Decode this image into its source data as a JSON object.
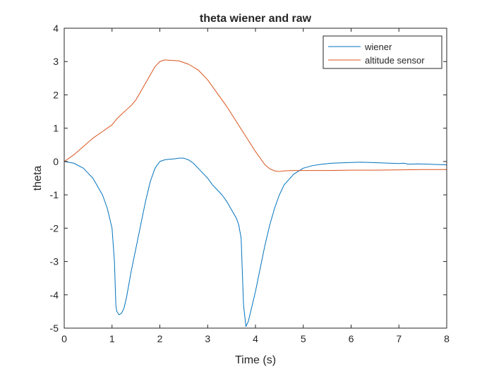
{
  "chart_data": {
    "type": "line",
    "title": "theta wiener and raw",
    "xlabel": "Time (s)",
    "ylabel": "theta",
    "xlim": [
      0,
      8
    ],
    "ylim": [
      -5,
      4
    ],
    "xticks": [
      0,
      1,
      2,
      3,
      4,
      5,
      6,
      7,
      8
    ],
    "yticks": [
      -5,
      -4,
      -3,
      -2,
      -1,
      0,
      1,
      2,
      3,
      4
    ],
    "grid": false,
    "legend_position": "top-right",
    "series": [
      {
        "name": "wiener",
        "color": "#0072BD",
        "x": [
          0,
          0.2,
          0.4,
          0.6,
          0.8,
          0.9,
          0.95,
          1.0,
          1.05,
          1.08,
          1.1,
          1.15,
          1.2,
          1.25,
          1.3,
          1.35,
          1.4,
          1.5,
          1.6,
          1.7,
          1.8,
          1.9,
          2.0,
          2.1,
          2.2,
          2.3,
          2.4,
          2.5,
          2.6,
          2.7,
          2.8,
          2.9,
          3.0,
          3.1,
          3.2,
          3.3,
          3.4,
          3.5,
          3.6,
          3.65,
          3.7,
          3.75,
          3.8,
          3.85,
          3.9,
          4.0,
          4.1,
          4.2,
          4.3,
          4.4,
          4.5,
          4.6,
          4.8,
          5.0,
          5.2,
          5.4,
          5.6,
          5.8,
          6.0,
          6.2,
          6.4,
          6.6,
          6.8,
          7.0,
          7.1,
          7.2,
          7.4,
          7.6,
          7.8,
          8.0
        ],
        "y": [
          0,
          -0.05,
          -0.2,
          -0.5,
          -1.0,
          -1.4,
          -1.7,
          -2.0,
          -3.0,
          -4.3,
          -4.5,
          -4.6,
          -4.55,
          -4.4,
          -4.1,
          -3.7,
          -3.3,
          -2.6,
          -1.9,
          -1.2,
          -0.6,
          -0.2,
          0,
          0.05,
          0.07,
          0.08,
          0.1,
          0.1,
          0.05,
          -0.05,
          -0.2,
          -0.35,
          -0.5,
          -0.7,
          -0.85,
          -1.0,
          -1.2,
          -1.45,
          -1.7,
          -1.9,
          -2.3,
          -4.3,
          -4.95,
          -4.8,
          -4.5,
          -3.9,
          -3.2,
          -2.5,
          -1.9,
          -1.4,
          -1.0,
          -0.7,
          -0.38,
          -0.2,
          -0.12,
          -0.08,
          -0.05,
          -0.04,
          -0.03,
          -0.02,
          -0.03,
          -0.04,
          -0.05,
          -0.06,
          -0.05,
          -0.08,
          -0.07,
          -0.08,
          -0.09,
          -0.1
        ]
      },
      {
        "name": "altitude sensor",
        "color": "#D95319",
        "x": [
          0,
          0.2,
          0.4,
          0.6,
          0.8,
          1.0,
          1.1,
          1.2,
          1.3,
          1.4,
          1.5,
          1.6,
          1.7,
          1.8,
          1.9,
          2.0,
          2.1,
          2.2,
          2.4,
          2.6,
          2.8,
          3.0,
          3.2,
          3.4,
          3.6,
          3.8,
          4.0,
          4.2,
          4.3,
          4.4,
          4.5,
          4.6,
          4.8,
          5.0,
          5.5,
          6.0,
          6.5,
          7.0,
          7.5,
          8.0
        ],
        "y": [
          0,
          0.2,
          0.45,
          0.7,
          0.9,
          1.1,
          1.28,
          1.42,
          1.55,
          1.68,
          1.85,
          2.1,
          2.35,
          2.6,
          2.85,
          3.0,
          3.05,
          3.04,
          3.02,
          2.92,
          2.75,
          2.45,
          2.05,
          1.65,
          1.2,
          0.75,
          0.3,
          -0.1,
          -0.22,
          -0.28,
          -0.3,
          -0.28,
          -0.27,
          -0.27,
          -0.27,
          -0.26,
          -0.26,
          -0.25,
          -0.24,
          -0.24
        ]
      }
    ]
  }
}
